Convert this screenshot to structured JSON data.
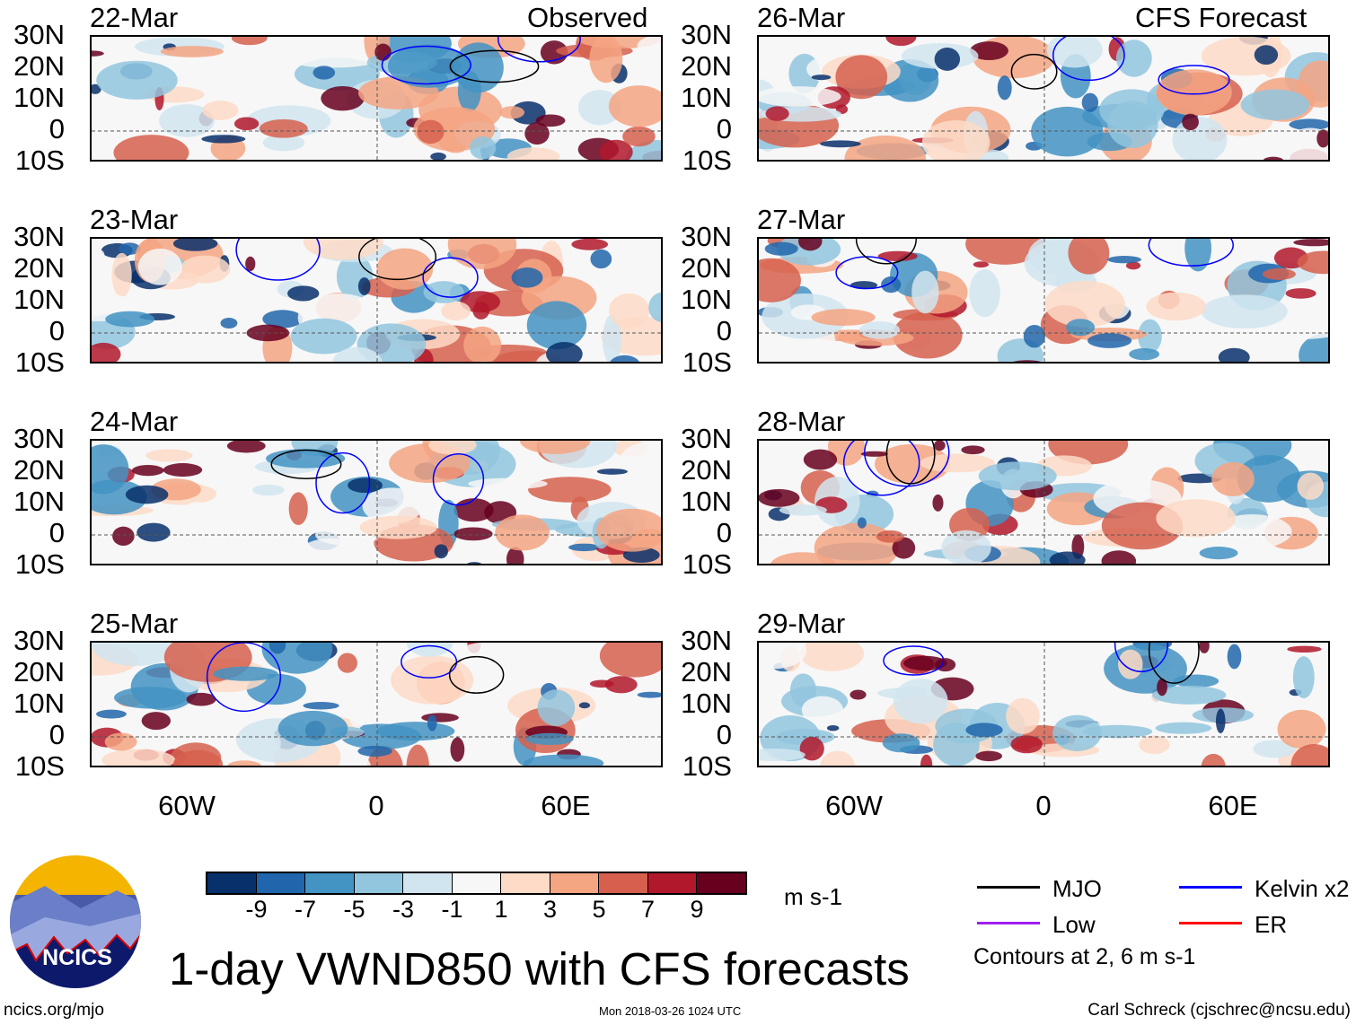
{
  "header": {
    "left_title": "Observed",
    "right_title": "CFS Forecast"
  },
  "chart_data": {
    "type": "heatmap",
    "title": "1-day VWND850 with CFS forecasts",
    "variable": "850 hPa meridional wind anomaly",
    "units": "m s-1",
    "lat_ticks": [
      "30N",
      "20N",
      "10N",
      "0",
      "10S"
    ],
    "lon_ticks": [
      "60W",
      "0",
      "60E"
    ],
    "lat_range": [
      -10,
      30
    ],
    "lon_range": [
      -90,
      90
    ],
    "panels": [
      {
        "date": "22-Mar",
        "type": "Observed"
      },
      {
        "date": "23-Mar",
        "type": "Observed"
      },
      {
        "date": "24-Mar",
        "type": "Observed"
      },
      {
        "date": "25-Mar",
        "type": "Observed"
      },
      {
        "date": "26-Mar",
        "type": "CFS Forecast"
      },
      {
        "date": "27-Mar",
        "type": "CFS Forecast"
      },
      {
        "date": "28-Mar",
        "type": "CFS Forecast"
      },
      {
        "date": "29-Mar",
        "type": "CFS Forecast"
      }
    ],
    "colorbar": {
      "labels": [
        "-9",
        "-7",
        "-5",
        "-3",
        "-1",
        "1",
        "3",
        "5",
        "7",
        "9"
      ],
      "colors": [
        "#08306b",
        "#2166ac",
        "#4393c3",
        "#92c5de",
        "#d1e5f0",
        "#f7f7f7",
        "#fddbc7",
        "#f4a582",
        "#d6604d",
        "#b2182b",
        "#67001f"
      ],
      "units": "m s-1"
    },
    "legend": [
      {
        "label": "MJO",
        "color": "#000000"
      },
      {
        "label": "Kelvin x2",
        "color": "#0000ff"
      },
      {
        "label": "Low",
        "color": "#a020f0"
      },
      {
        "label": "ER",
        "color": "#ff0000"
      }
    ],
    "contour_note": "Contours at 2, 6 m s-1"
  },
  "logo": {
    "text": "NCICS"
  },
  "footer": {
    "url": "ncics.org/mjo",
    "timestamp": "Mon 2018-03-26 1024 UTC",
    "author": "Carl Schreck (cjschrec@ncsu.edu)"
  }
}
